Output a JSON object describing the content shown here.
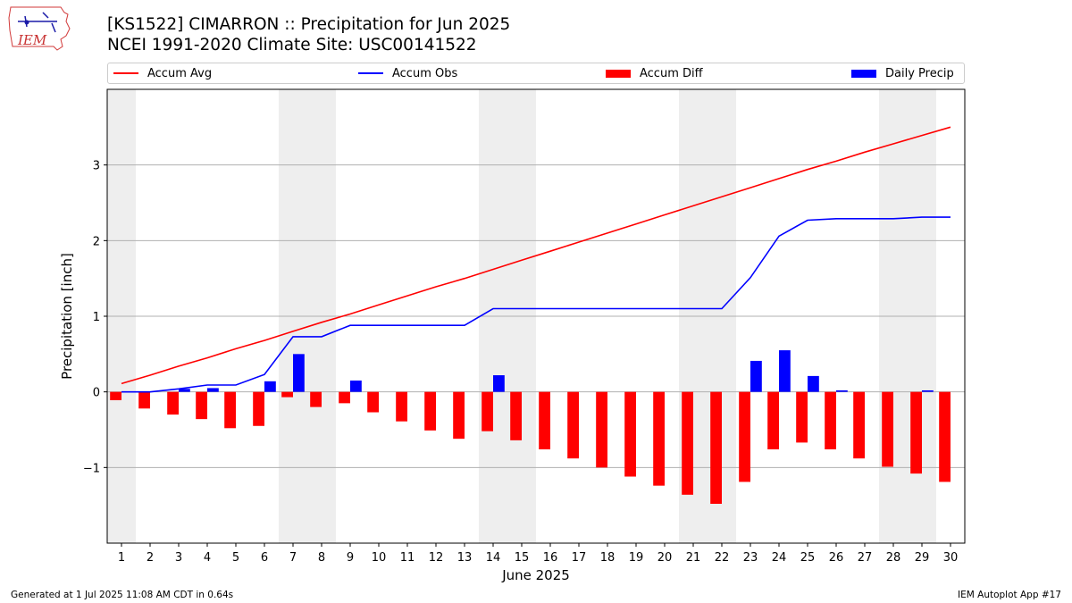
{
  "header": {
    "title_line1": "[KS1522] CIMARRON :: Precipitation for Jun 2025",
    "title_line2": "NCEI 1991-2020 Climate Site: USC00141522"
  },
  "logo": {
    "text": "IEM"
  },
  "legend": {
    "items": [
      {
        "label": "Accum Avg",
        "kind": "line",
        "color": "#ff0000"
      },
      {
        "label": "Accum Obs",
        "kind": "line",
        "color": "#0000ff"
      },
      {
        "label": "Accum Diff",
        "kind": "bar",
        "color": "#ff0000"
      },
      {
        "label": "Daily Precip",
        "kind": "bar",
        "color": "#0000ff"
      }
    ]
  },
  "footer": {
    "left": "Generated at 1 Jul 2025 11:08 AM CDT in 0.64s",
    "right": "IEM Autoplot App #17"
  },
  "chart_data": {
    "type": "bar",
    "xlabel": "June 2025",
    "ylabel": "Precipitation [inch]",
    "x": [
      1,
      2,
      3,
      4,
      5,
      6,
      7,
      8,
      9,
      10,
      11,
      12,
      13,
      14,
      15,
      16,
      17,
      18,
      19,
      20,
      21,
      22,
      23,
      24,
      25,
      26,
      27,
      28,
      29,
      30
    ],
    "ylim": [
      -2.0,
      4.0
    ],
    "yticks": [
      -1,
      0,
      1,
      2,
      3
    ],
    "ytick_labels": [
      "−1",
      "0",
      "1",
      "2",
      "3"
    ],
    "grid": "horizontal",
    "legend_position": "top",
    "weekend_shading": [
      [
        1,
        1
      ],
      [
        7,
        8
      ],
      [
        14,
        15
      ],
      [
        21,
        22
      ],
      [
        28,
        29
      ]
    ],
    "shading_color": "#eeeeee",
    "series": [
      {
        "name": "Accum Avg",
        "type": "line",
        "color": "#ff0000",
        "values": [
          0.11,
          0.22,
          0.34,
          0.45,
          0.57,
          0.68,
          0.8,
          0.92,
          1.03,
          1.15,
          1.27,
          1.39,
          1.5,
          1.62,
          1.74,
          1.86,
          1.98,
          2.1,
          2.22,
          2.34,
          2.46,
          2.58,
          2.7,
          2.82,
          2.94,
          3.05,
          3.17,
          3.28,
          3.39,
          3.5
        ]
      },
      {
        "name": "Accum Obs",
        "type": "line",
        "color": "#0000ff",
        "values": [
          0.0,
          0.0,
          0.04,
          0.09,
          0.09,
          0.23,
          0.73,
          0.73,
          0.88,
          0.88,
          0.88,
          0.88,
          0.88,
          1.1,
          1.1,
          1.1,
          1.1,
          1.1,
          1.1,
          1.1,
          1.1,
          1.1,
          1.51,
          2.06,
          2.27,
          2.29,
          2.29,
          2.29,
          2.31,
          2.31
        ]
      },
      {
        "name": "Accum Diff",
        "type": "bar",
        "color": "#ff0000",
        "values": [
          -0.11,
          -0.22,
          -0.3,
          -0.36,
          -0.48,
          -0.45,
          -0.07,
          -0.2,
          -0.15,
          -0.27,
          -0.39,
          -0.51,
          -0.62,
          -0.52,
          -0.64,
          -0.76,
          -0.88,
          -1.0,
          -1.12,
          -1.24,
          -1.36,
          -1.48,
          -1.19,
          -0.76,
          -0.67,
          -0.76,
          -0.88,
          -0.99,
          -1.08,
          -1.19
        ]
      },
      {
        "name": "Daily Precip",
        "type": "bar",
        "color": "#0000ff",
        "values": [
          0.0,
          0.0,
          0.04,
          0.05,
          0.0,
          0.14,
          0.5,
          0.0,
          0.15,
          0.0,
          0.0,
          0.0,
          0.0,
          0.22,
          0.0,
          0.0,
          0.0,
          0.0,
          0.0,
          0.0,
          0.0,
          0.0,
          0.41,
          0.55,
          0.21,
          0.02,
          0.0,
          0.0,
          0.02,
          0.0
        ]
      }
    ]
  }
}
